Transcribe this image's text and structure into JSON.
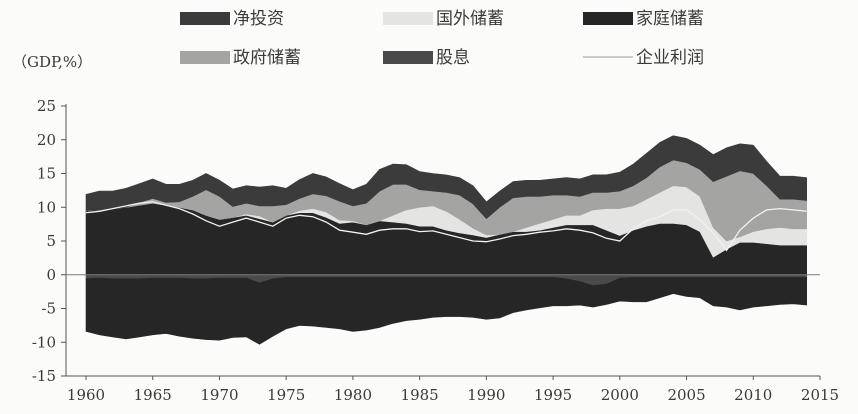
{
  "chart_data": {
    "type": "area",
    "stacked": true,
    "unit_label": "（GDP,%）",
    "x": [
      1960,
      1961,
      1962,
      1963,
      1964,
      1965,
      1966,
      1967,
      1968,
      1969,
      1970,
      1971,
      1972,
      1973,
      1974,
      1975,
      1976,
      1977,
      1978,
      1979,
      1980,
      1981,
      1982,
      1983,
      1984,
      1985,
      1986,
      1987,
      1988,
      1989,
      1990,
      1991,
      1992,
      1993,
      1994,
      1995,
      1996,
      1997,
      1998,
      1999,
      2000,
      2001,
      2002,
      2003,
      2004,
      2005,
      2006,
      2007,
      2008,
      2009,
      2010,
      2011,
      2012,
      2013,
      2014
    ],
    "xticks": [
      1960,
      1965,
      1970,
      1975,
      1980,
      1985,
      1990,
      1995,
      2000,
      2005,
      2010,
      2015
    ],
    "ylim": [
      -15,
      25
    ],
    "yticks": [
      25,
      20,
      15,
      10,
      5,
      0,
      -5,
      -10,
      -15
    ],
    "legend_position": "top",
    "colors": {
      "net_investment": "#3b3b3b",
      "foreign_savings": "#e4e4e2",
      "household_savings": "#262626",
      "government_savings": "#a4a4a2",
      "dividends": "#4a4a4a",
      "corporate_profit_line": "#f2f2f0",
      "background": "#fbfbf9"
    },
    "series": [
      {
        "name": "家庭储蓄",
        "key": "household_savings",
        "positive": [
          9.5,
          9.6,
          9.8,
          10.0,
          10.3,
          10.6,
          10.3,
          10.0,
          9.6,
          8.8,
          8.2,
          8.5,
          8.8,
          8.3,
          7.8,
          8.8,
          9.2,
          9.2,
          8.5,
          7.6,
          7.8,
          7.4,
          8.0,
          7.8,
          7.6,
          7.2,
          7.2,
          6.6,
          6.2,
          5.9,
          5.5,
          6.0,
          6.4,
          6.4,
          6.6,
          7.0,
          7.4,
          7.4,
          7.4,
          6.6,
          5.8,
          6.6,
          7.2,
          7.6,
          7.6,
          7.4,
          6.4,
          2.6,
          3.8,
          4.8,
          4.8,
          4.6,
          4.4,
          4.4,
          4.4
        ],
        "negative": [
          -7.8,
          -8.4,
          -8.6,
          -8.9,
          -8.6,
          -8.4,
          -8.2,
          -8.6,
          -8.8,
          -9.0,
          -9.2,
          -8.8,
          -8.7,
          -9.1,
          -8.5,
          -7.6,
          -7.1,
          -7.2,
          -7.4,
          -7.6,
          -8.0,
          -7.8,
          -7.4,
          -6.8,
          -6.4,
          -6.2,
          -5.9,
          -5.8,
          -5.8,
          -5.9,
          -6.2,
          -6.0,
          -5.2,
          -4.8,
          -4.5,
          -4.2,
          -4.0,
          -3.5,
          -3.2,
          -3.0,
          -3.4,
          -3.6,
          -3.6,
          -3.0,
          -2.4,
          -2.8,
          -3.0,
          -4.2,
          -4.4,
          -4.8,
          -4.4,
          -4.2,
          -4.0,
          -3.9,
          -4.1
        ]
      },
      {
        "name": "企业利润",
        "key": "corporate_profit_line",
        "line": [
          9.2,
          9.4,
          9.8,
          10.2,
          10.6,
          10.8,
          10.3,
          9.8,
          9.0,
          8.0,
          7.2,
          7.8,
          8.4,
          7.8,
          7.2,
          8.4,
          8.8,
          8.6,
          7.8,
          6.6,
          6.3,
          6.0,
          6.6,
          6.8,
          6.8,
          6.4,
          6.5,
          6.0,
          5.5,
          5.0,
          4.9,
          5.3,
          5.8,
          6.0,
          6.3,
          6.5,
          6.8,
          6.6,
          6.2,
          5.4,
          5.0,
          6.8,
          8.0,
          8.6,
          9.6,
          9.6,
          8.2,
          6.2,
          3.6,
          6.6,
          8.4,
          9.6,
          9.8,
          9.6,
          9.4
        ]
      },
      {
        "name": "国外储蓄",
        "key": "foreign_savings",
        "positive": [
          0,
          0,
          0,
          0,
          0,
          0,
          0,
          0,
          0,
          0,
          0,
          0,
          0.2,
          0.4,
          0,
          0,
          0.3,
          0.6,
          0.8,
          0.5,
          0.2,
          0,
          0,
          1.0,
          2.0,
          2.8,
          3.0,
          2.8,
          2.0,
          1.0,
          0.4,
          0,
          0,
          0.6,
          1.0,
          1.2,
          1.4,
          1.4,
          2.2,
          3.2,
          4.0,
          3.6,
          4.0,
          4.6,
          5.6,
          5.6,
          5.2,
          4.4,
          1.2,
          0.8,
          1.6,
          2.2,
          2.6,
          2.4,
          2.4
        ]
      },
      {
        "name": "政府储蓄",
        "key": "government_savings",
        "positive": [
          0,
          0,
          0,
          0,
          0.4,
          0.7,
          0.4,
          0.8,
          2.0,
          3.8,
          3.4,
          1.6,
          1.6,
          1.5,
          2.4,
          1.6,
          1.8,
          2.2,
          2.4,
          2.8,
          2.2,
          3.2,
          4.4,
          4.6,
          3.8,
          2.6,
          2.2,
          2.8,
          3.6,
          3.6,
          2.4,
          4.0,
          5.0,
          4.6,
          4.0,
          3.6,
          3.0,
          2.8,
          2.6,
          2.4,
          2.6,
          3.0,
          3.2,
          3.8,
          3.8,
          3.6,
          4.0,
          6.8,
          9.6,
          9.8,
          8.6,
          6.4,
          4.2,
          4.4,
          4.2
        ]
      },
      {
        "name": "净投资",
        "key": "net_investment",
        "positive": [
          2.4,
          2.8,
          2.6,
          2.8,
          2.8,
          2.9,
          2.7,
          2.6,
          2.4,
          2.4,
          2.4,
          2.6,
          2.6,
          2.8,
          3.0,
          2.4,
          2.8,
          3.0,
          2.8,
          2.6,
          2.4,
          2.8,
          3.2,
          3.0,
          2.9,
          2.7,
          2.6,
          2.6,
          2.6,
          2.7,
          2.5,
          2.4,
          2.4,
          2.4,
          2.4,
          2.4,
          2.6,
          2.6,
          2.6,
          2.6,
          2.8,
          3.2,
          3.6,
          3.6,
          3.6,
          3.6,
          3.6,
          4.0,
          4.2,
          4.0,
          4.2,
          3.6,
          3.4,
          3.4,
          3.4
        ]
      },
      {
        "name": "股息",
        "key": "dividends",
        "negative": [
          -0.6,
          -0.5,
          -0.6,
          -0.6,
          -0.6,
          -0.5,
          -0.5,
          -0.5,
          -0.6,
          -0.6,
          -0.5,
          -0.5,
          -0.5,
          -1.2,
          -0.6,
          -0.4,
          -0.4,
          -0.4,
          -0.4,
          -0.4,
          -0.4,
          -0.4,
          -0.4,
          -0.4,
          -0.4,
          -0.4,
          -0.4,
          -0.4,
          -0.4,
          -0.4,
          -0.4,
          -0.4,
          -0.4,
          -0.4,
          -0.4,
          -0.4,
          -0.6,
          -1.0,
          -1.6,
          -1.4,
          -0.5,
          -0.4,
          -0.4,
          -0.4,
          -0.4,
          -0.4,
          -0.4,
          -0.4,
          -0.4,
          -0.4,
          -0.4,
          -0.4,
          -0.4,
          -0.4,
          -0.4
        ]
      }
    ]
  },
  "legend": [
    {
      "label": "净投资",
      "key": "net_investment",
      "kind": "box"
    },
    {
      "label": "国外储蓄",
      "key": "foreign_savings",
      "kind": "box"
    },
    {
      "label": "家庭储蓄",
      "key": "household_savings",
      "kind": "box"
    },
    {
      "label": "政府储蓄",
      "key": "government_savings",
      "kind": "box"
    },
    {
      "label": "股息",
      "key": "dividends",
      "kind": "box"
    },
    {
      "label": "企业利润",
      "key": "corporate_profit_line",
      "kind": "line"
    }
  ]
}
